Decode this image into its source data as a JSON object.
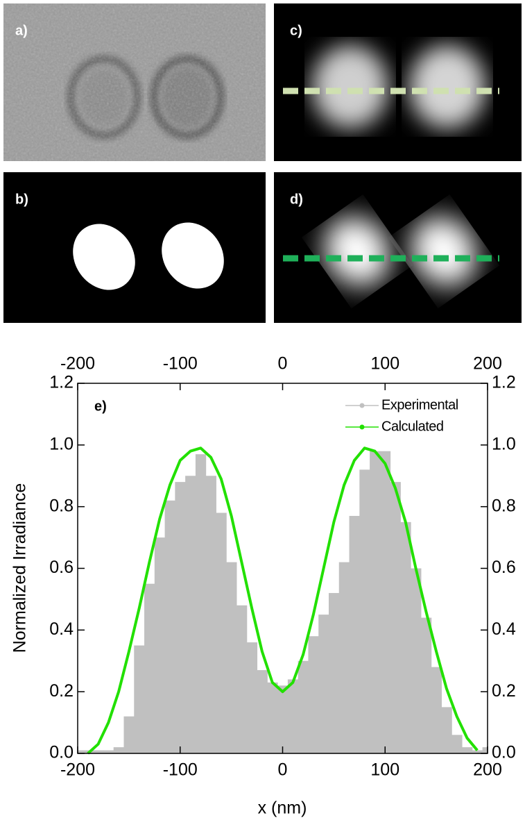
{
  "panels": [
    {
      "label": "a)"
    },
    {
      "label": "b)"
    },
    {
      "label": "c)"
    },
    {
      "label": "d)"
    }
  ],
  "chart_data": {
    "type": "line",
    "annotation": "e)",
    "x_label": "x (nm)",
    "y_label": "Normalized Irradiance",
    "x": [
      -200,
      -190,
      -180,
      -170,
      -160,
      -150,
      -140,
      -130,
      -120,
      -110,
      -100,
      -90,
      -80,
      -70,
      -60,
      -50,
      -40,
      -30,
      -20,
      -10,
      0,
      10,
      20,
      30,
      40,
      50,
      60,
      70,
      80,
      90,
      100,
      110,
      120,
      130,
      140,
      150,
      160,
      170,
      180,
      190,
      200
    ],
    "series": [
      {
        "name": "Experimental",
        "color": "#c0c0c0",
        "fill": true,
        "values": [
          0.01,
          0.01,
          0.01,
          0.01,
          0.02,
          0.12,
          0.35,
          0.55,
          0.7,
          0.82,
          0.88,
          0.9,
          0.97,
          0.9,
          0.78,
          0.62,
          0.48,
          0.36,
          0.27,
          0.23,
          0.22,
          0.24,
          0.3,
          0.38,
          0.45,
          0.52,
          0.62,
          0.77,
          0.92,
          0.98,
          0.98,
          0.88,
          0.75,
          0.6,
          0.44,
          0.28,
          0.15,
          0.06,
          0.02,
          0.01,
          0.02
        ]
      },
      {
        "name": "Calculated",
        "color": "#22e000",
        "fill": false,
        "values": [
          null,
          0,
          0.03,
          0.1,
          0.2,
          0.33,
          0.47,
          0.62,
          0.76,
          0.87,
          0.95,
          0.98,
          0.99,
          0.96,
          0.89,
          0.77,
          0.62,
          0.47,
          0.33,
          0.23,
          0.2,
          0.23,
          0.32,
          0.45,
          0.6,
          0.75,
          0.87,
          0.95,
          0.99,
          0.98,
          0.94,
          0.86,
          0.75,
          0.6,
          0.46,
          0.33,
          0.21,
          0.12,
          0.05,
          0.01,
          null
        ]
      }
    ],
    "xlim": [
      -200,
      200
    ],
    "xticks": [
      -200,
      -100,
      0,
      100,
      200
    ],
    "x2lim": [
      -200,
      200
    ],
    "x2ticks": [
      -200,
      -100,
      0,
      100,
      200
    ],
    "ylim": [
      0,
      1.2
    ],
    "yticks": [
      {
        "value": 0,
        "label": "0.0"
      },
      0.2,
      0.4,
      0.6,
      0.8,
      {
        "value": 1,
        "label": "1.0"
      },
      1.2
    ],
    "y2lim": [
      0,
      1.2
    ],
    "y2ticks": [
      {
        "value": 0,
        "label": "0.0"
      },
      0.2,
      0.4,
      0.6,
      0.8,
      {
        "value": 1,
        "label": "1.0"
      },
      1.2
    ],
    "legend": "top-right"
  }
}
